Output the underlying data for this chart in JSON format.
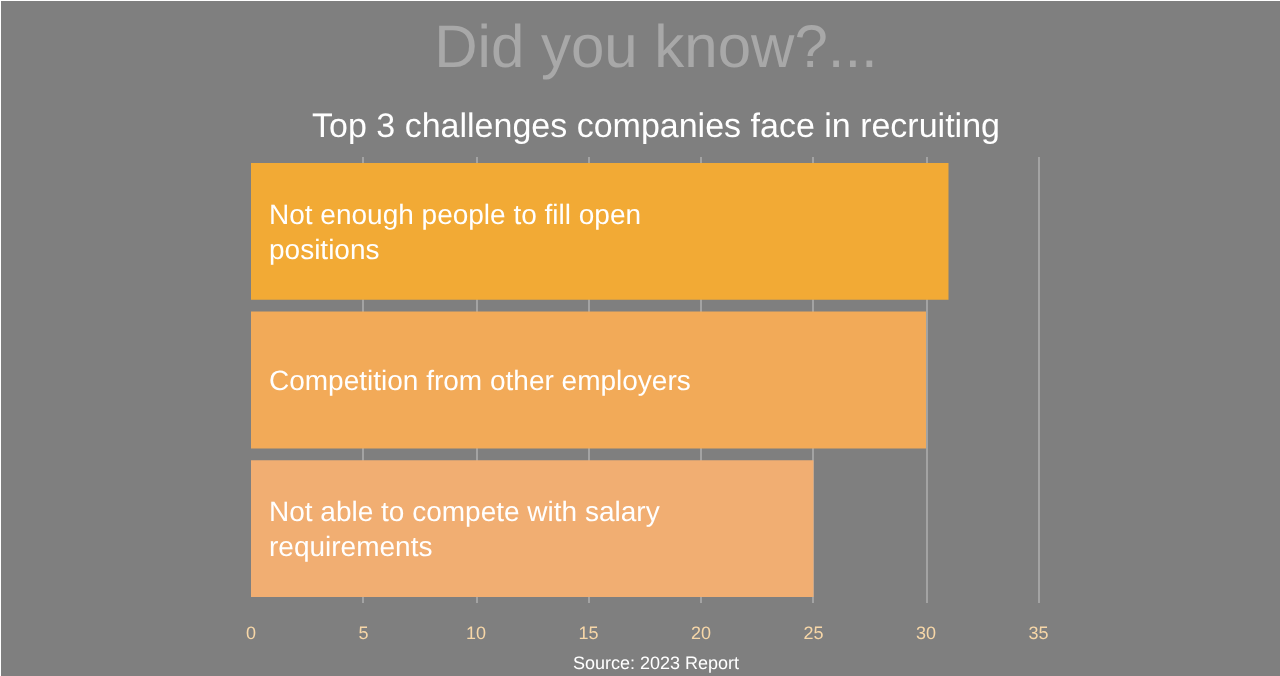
{
  "chart_data": {
    "type": "bar",
    "orientation": "horizontal",
    "title": "Did you know?...",
    "subtitle": "Top 3 challenges companies face in recruiting",
    "categories": [
      "Not enough people to fill open positions",
      "Competition from other employers",
      "Not able to compete with salary requirements"
    ],
    "values": [
      31,
      30,
      25
    ],
    "colors": [
      "#f2aa35",
      "#f2aa58",
      "#f1ae72"
    ],
    "xlim": [
      0,
      36
    ],
    "xticks": [
      0,
      5,
      10,
      15,
      20,
      25,
      30,
      35
    ],
    "grid": "x",
    "annotations": [
      "Source: 2023 Report"
    ]
  }
}
